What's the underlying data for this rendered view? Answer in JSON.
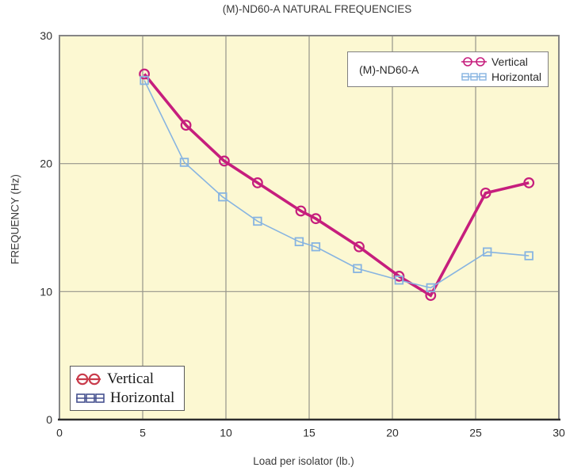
{
  "title": "(M)-ND60-A NATURAL FREQUENCIES",
  "axes": {
    "x_label": "Load per isolator (lb.)",
    "y_label": "FREQUENCY (Hz)",
    "x_ticks": [
      0,
      5,
      10,
      15,
      20,
      25,
      30
    ],
    "y_ticks": [
      0,
      10,
      20,
      30
    ]
  },
  "legend_key": {
    "model_label": "(M)-ND60-A",
    "entries": [
      {
        "label": "Vertical",
        "marker": "circle-pair-icon",
        "color": "#C61E7D"
      },
      {
        "label": "Horizontal",
        "marker": "square-trio-icon",
        "color": "#87B4E1"
      }
    ]
  },
  "legend_inset": {
    "entries": [
      {
        "label": "Vertical",
        "marker": "circle-pair-icon",
        "color": "#C93B4B"
      },
      {
        "label": "Horizontal",
        "marker": "square-trio-icon",
        "color": "#46518F"
      }
    ]
  },
  "colors": {
    "vertical_series": "#C61E7D",
    "horizontal_series": "#87B4E1",
    "inset_vertical": "#C93B4B",
    "inset_horizontal": "#46518F",
    "plot_background": "#FCF8D2",
    "grid": "#96948A",
    "frame": "#858585",
    "axis": "#2E2E2E",
    "text": "#2E2E2E"
  },
  "chart_data": {
    "type": "line",
    "title": "(M)-ND60-A NATURAL FREQUENCIES",
    "xlabel": "Load per isolator (lb.)",
    "ylabel": "FREQUENCY (Hz)",
    "xlim": [
      0,
      30
    ],
    "ylim": [
      0,
      30
    ],
    "x_ticks": [
      0,
      5,
      10,
      15,
      20,
      25,
      30
    ],
    "y_ticks": [
      0,
      10,
      20,
      30
    ],
    "grid_x": [
      5,
      10,
      15,
      20,
      25
    ],
    "grid_y": [
      10,
      20
    ],
    "legend_position": "top-right key box and bottom-left inset box",
    "series": [
      {
        "name": "Vertical",
        "marker": "circle",
        "color": "#C61E7D",
        "line_width": 3.6,
        "points": [
          [
            5.1,
            27.0
          ],
          [
            7.6,
            23.0
          ],
          [
            9.9,
            20.2
          ],
          [
            11.9,
            18.5
          ],
          [
            14.5,
            16.3
          ],
          [
            15.4,
            15.7
          ],
          [
            18.0,
            13.5
          ],
          [
            20.4,
            11.2
          ],
          [
            22.3,
            9.7
          ],
          [
            25.6,
            17.7
          ],
          [
            28.2,
            18.5
          ]
        ]
      },
      {
        "name": "Horizontal",
        "marker": "square",
        "color": "#87B4E1",
        "line_width": 1.6,
        "points": [
          [
            5.1,
            26.5
          ],
          [
            7.5,
            20.1
          ],
          [
            9.8,
            17.4
          ],
          [
            11.9,
            15.5
          ],
          [
            14.4,
            13.9
          ],
          [
            15.4,
            13.5
          ],
          [
            17.9,
            11.8
          ],
          [
            20.4,
            10.9
          ],
          [
            22.3,
            10.3
          ],
          [
            25.7,
            13.1
          ],
          [
            28.2,
            12.8
          ]
        ]
      }
    ]
  }
}
